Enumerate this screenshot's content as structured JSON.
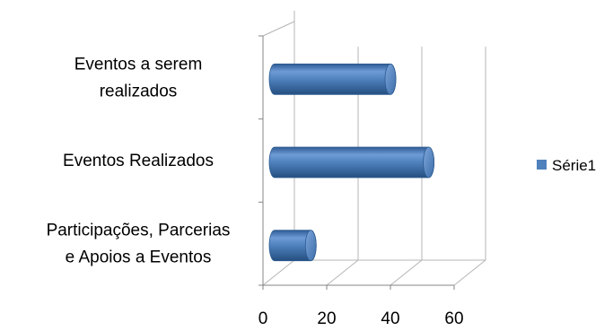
{
  "chart_data": {
    "type": "bar",
    "orientation": "horizontal",
    "style": "3d-cylinder",
    "categories": [
      [
        "Participações, Parcerias",
        "e Apoios a Eventos"
      ],
      [
        "Eventos Realizados"
      ],
      [
        "Eventos a serem",
        "realizados"
      ]
    ],
    "series": [
      {
        "name": "Série1",
        "values": [
          15,
          52,
          40
        ],
        "color": "#4F81BD"
      }
    ],
    "x_ticks": [
      "0",
      "20",
      "40",
      "60"
    ],
    "xlim": [
      0,
      60
    ],
    "grid": true,
    "legend": "right"
  }
}
